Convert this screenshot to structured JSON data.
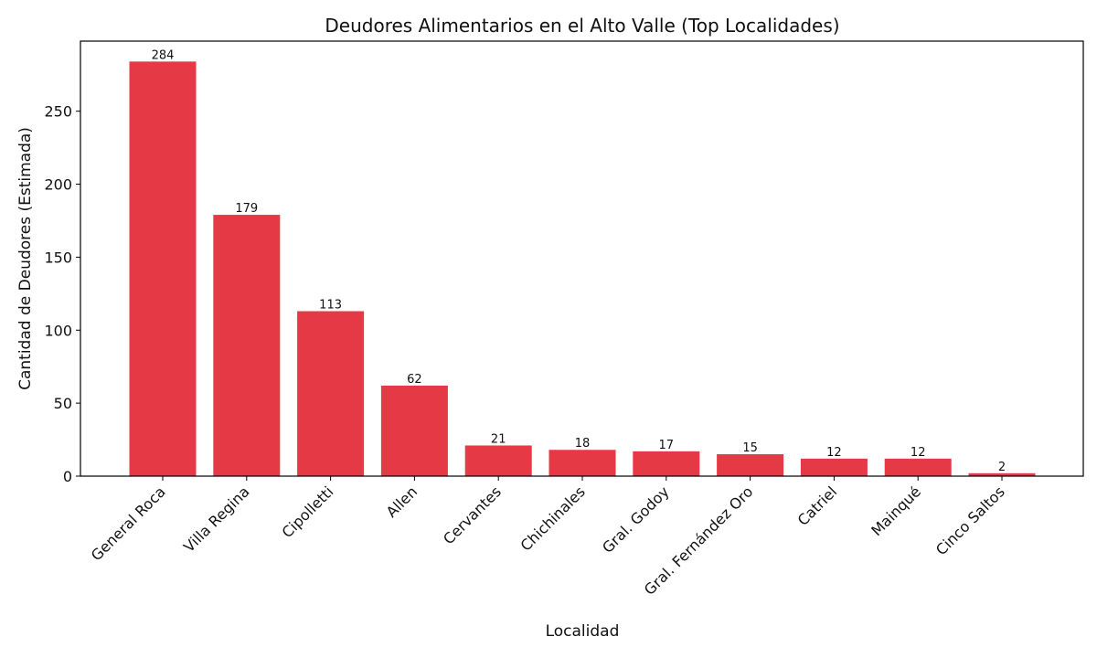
{
  "chart_data": {
    "type": "bar",
    "title": "Deudores Alimentarios en el Alto Valle (Top Localidades)",
    "xlabel": "Localidad",
    "ylabel": "Cantidad de Deudores (Estimada)",
    "categories": [
      "General Roca",
      "Villa Regina",
      "Cipolletti",
      "Allen",
      "Cervantes",
      "Chichinales",
      "Gral. Godoy",
      "Gral. Fernández Oro",
      "Catriel",
      "Mainqué",
      "Cinco Saltos"
    ],
    "values": [
      284,
      179,
      113,
      62,
      21,
      18,
      17,
      15,
      12,
      12,
      2
    ],
    "ylim": [
      0,
      298
    ],
    "yticks": [
      0,
      50,
      100,
      150,
      200,
      250
    ],
    "bar_color": "#e63946",
    "grid": false,
    "legend": "none"
  }
}
